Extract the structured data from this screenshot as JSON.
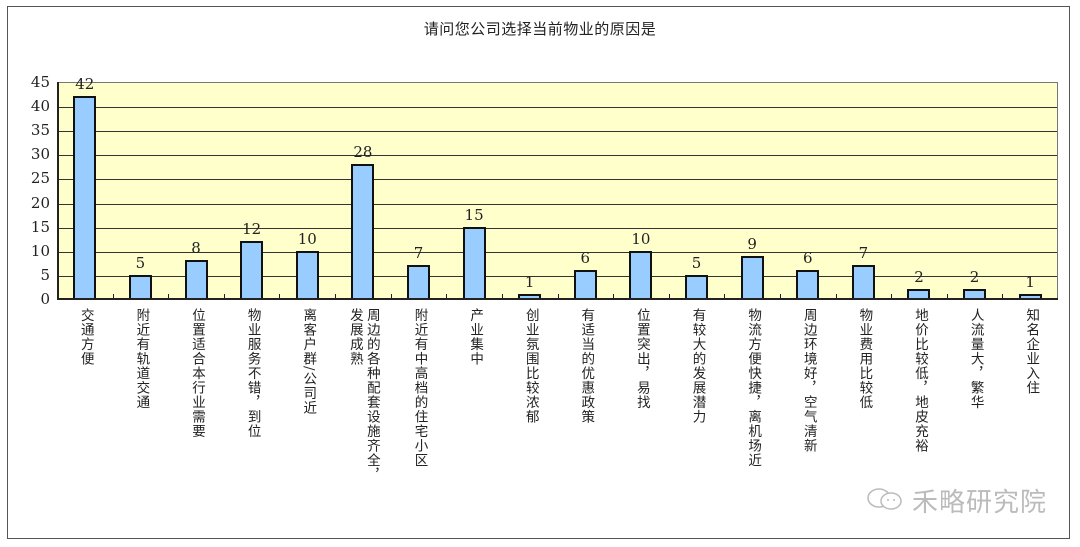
{
  "chart_data": {
    "type": "bar",
    "title": "请问您公司选择当前物业的原因是",
    "xlabel": "",
    "ylabel": "",
    "ylim": [
      0,
      45
    ],
    "yticks": [
      0,
      5,
      10,
      15,
      20,
      25,
      30,
      35,
      40,
      45
    ],
    "grid": true,
    "legend": "none",
    "categories": [
      "交通方便",
      "附近有轨道交通",
      "位置适合本行业需要",
      "物业服务不错，到位",
      "离客户群/公司近",
      "周边的各种配套设施齐全，发展成熟",
      "附近有中高档的住宅小区",
      "产业集中",
      "创业氛围比较浓郁",
      "有适当的优惠政策",
      "位置突出，易找",
      "有较大的发展潜力",
      "物流方便快捷，离机场近",
      "周边环境好，空气清新",
      "物业费用比较低",
      "地价比较低，地皮充裕",
      "人流量大，繁华",
      "知名企业入住"
    ],
    "values": [
      42,
      5,
      8,
      12,
      10,
      28,
      7,
      15,
      1,
      6,
      10,
      5,
      9,
      6,
      7,
      2,
      2,
      1
    ],
    "colors": {
      "bar": "#99CCFF",
      "plot_bg": "#FFFFCC",
      "bar_border": "#111111"
    }
  },
  "display": {
    "title": "请问您公司选择当前物业的原因是",
    "category_lines": [
      "交通方便",
      "附近有轨道交通",
      "位置适合本行业需要",
      "物业服务不错，到位",
      "离客户群/公司近",
      "周边的各种配套设施齐全，\n发展成熟",
      "附近有中高档的住宅小区",
      "产业集中",
      "创业氛围比较浓郁",
      "有适当的优惠政策",
      "位置突出，易找",
      "有较大的发展潜力",
      "物流方便快捷，离机场近",
      "周边环境好，空气清新",
      "物业费用比较低",
      "地价比较低，地皮充裕",
      "人流量大，繁华",
      "知名企业入住"
    ],
    "watermark": "禾略研究院"
  }
}
